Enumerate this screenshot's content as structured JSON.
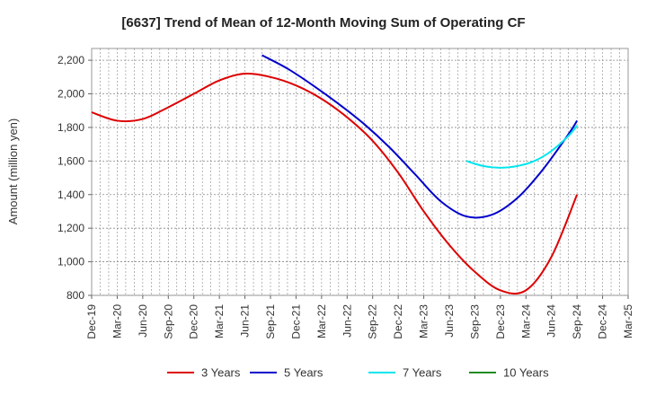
{
  "chart_data": {
    "type": "line",
    "title": "[6637]  Trend of Mean of 12-Month Moving Sum of Operating CF",
    "xlabel": "",
    "ylabel": "Amount (million yen)",
    "ylim": [
      800,
      2270
    ],
    "yticks": [
      800,
      1000,
      1200,
      1400,
      1600,
      1800,
      2000,
      2200
    ],
    "ytick_labels": [
      "800",
      "1,000",
      "1,200",
      "1,400",
      "1,600",
      "1,800",
      "2,000",
      "2,200"
    ],
    "x_tick_labels": [
      "Dec-19",
      "Mar-20",
      "Jun-20",
      "Sep-20",
      "Dec-20",
      "Mar-21",
      "Jun-21",
      "Sep-21",
      "Dec-21",
      "Mar-22",
      "Jun-22",
      "Sep-22",
      "Dec-22",
      "Mar-23",
      "Jun-23",
      "Sep-23",
      "Dec-23",
      "Mar-24",
      "Jun-24",
      "Sep-24",
      "Dec-24",
      "Mar-25"
    ],
    "x_range_months": [
      0,
      63
    ],
    "grid": true,
    "legend_position": "bottom",
    "series": [
      {
        "name": "3 Years",
        "color": "#dd0000",
        "x": [
          0,
          3,
          6,
          9,
          12,
          15,
          18,
          21,
          24,
          27,
          30,
          33,
          36,
          39,
          42,
          45,
          48,
          51,
          54,
          57
        ],
        "values": [
          1890,
          1840,
          1850,
          1920,
          2000,
          2080,
          2120,
          2100,
          2050,
          1970,
          1860,
          1720,
          1530,
          1300,
          1100,
          940,
          830,
          830,
          1030,
          1400
        ]
      },
      {
        "name": "5 Years",
        "color": "#0000cc",
        "x": [
          20,
          23,
          26,
          29,
          32,
          35,
          38,
          41,
          44,
          47,
          50,
          53,
          56,
          57
        ],
        "values": [
          2230,
          2150,
          2050,
          1940,
          1820,
          1680,
          1520,
          1360,
          1270,
          1280,
          1380,
          1550,
          1760,
          1840
        ]
      },
      {
        "name": "7 Years",
        "color": "#00e5ee",
        "x": [
          44,
          46,
          48,
          50,
          52,
          54,
          56,
          57
        ],
        "values": [
          1600,
          1570,
          1560,
          1570,
          1600,
          1660,
          1750,
          1810
        ]
      },
      {
        "name": "10 Years",
        "color": "#228b22",
        "x": [],
        "values": []
      }
    ]
  }
}
